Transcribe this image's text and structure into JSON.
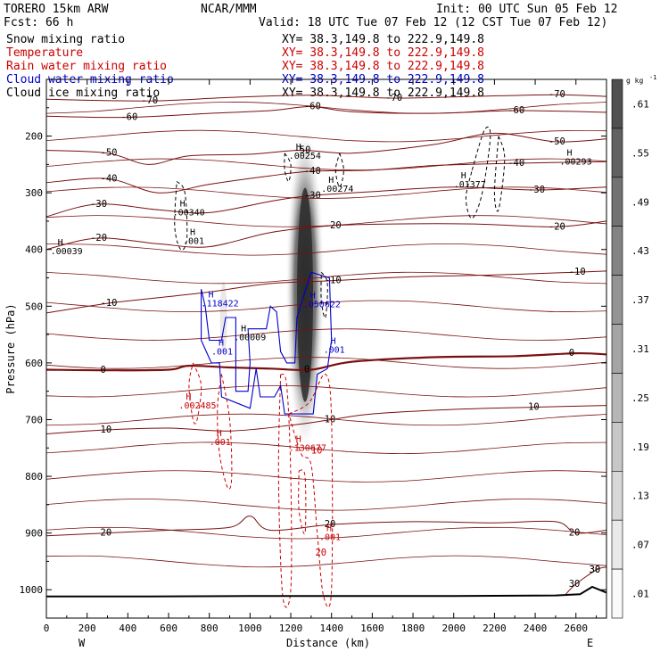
{
  "header": {
    "model": "TORERO  15km ARW",
    "org": "NCAR/MMM",
    "init": "Init: 00 UTC Sun 05 Feb 12",
    "fcst": "Fcst:   66 h",
    "valid": "Valid: 18 UTC Tue 07 Feb 12 (12 CST Tue 07 Feb 12)"
  },
  "fields": [
    {
      "name": "Snow mixing ratio",
      "xy": "XY=  38.3,149.8 to 222.9,149.8",
      "color": "#000000"
    },
    {
      "name": "Temperature",
      "xy": "XY=  38.3,149.8 to 222.9,149.8",
      "color": "#cc0000"
    },
    {
      "name": "Rain water mixing ratio",
      "xy": "XY=  38.3,149.8 to 222.9,149.8",
      "color": "#cc0000"
    },
    {
      "name": "Cloud water mixing ratio",
      "xy": "XY=  38.3,149.8 to 222.9,149.8",
      "color": "#0000cc"
    },
    {
      "name": "Cloud ice mixing ratio",
      "xy": "XY=  38.3,149.8 to 222.9,149.8",
      "color": "#000000"
    }
  ],
  "chart_data": {
    "type": "cross-section contour",
    "xlabel": "Distance (km)",
    "ylabel": "Pressure (hPa)",
    "xlim": [
      0,
      2750
    ],
    "ylim": [
      1050,
      100
    ],
    "xticks": [
      "0",
      "200",
      "400",
      "600",
      "800",
      "1000",
      "1200",
      "1400",
      "1600",
      "1800",
      "2000",
      "2200",
      "2400",
      "2600"
    ],
    "yticks": [
      "200",
      "300",
      "400",
      "500",
      "600",
      "700",
      "800",
      "900",
      "1000"
    ],
    "x_endpoints": [
      "W",
      "E"
    ],
    "colorbar": {
      "unit": "g kg",
      "unit_exp": "-1",
      "labels": [
        ".61",
        ".55",
        ".49",
        ".43",
        ".37",
        ".31",
        ".25",
        ".19",
        ".13",
        ".07",
        ".01"
      ]
    },
    "temperature_contours": [
      {
        "label": "-70",
        "points": [
          [
            0,
            135
          ],
          [
            500,
            138
          ],
          [
            900,
            132
          ],
          [
            1300,
            128
          ],
          [
            1700,
            133
          ],
          [
            2100,
            130
          ],
          [
            2500,
            127
          ],
          [
            2750,
            130
          ]
        ]
      },
      {
        "label": "-60",
        "points": [
          [
            0,
            165
          ],
          [
            400,
            167
          ],
          [
            800,
            160
          ],
          [
            1100,
            155
          ],
          [
            1300,
            148
          ],
          [
            1500,
            157
          ],
          [
            1900,
            160
          ],
          [
            2300,
            155
          ],
          [
            2750,
            158
          ]
        ]
      },
      {
        "label": "-50",
        "points": [
          [
            0,
            225
          ],
          [
            300,
            230
          ],
          [
            500,
            250
          ],
          [
            700,
            235
          ],
          [
            1000,
            232
          ],
          [
            1250,
            225
          ],
          [
            1500,
            230
          ],
          [
            1900,
            215
          ],
          [
            2200,
            195
          ],
          [
            2500,
            210
          ],
          [
            2750,
            205
          ]
        ]
      },
      {
        "label": "-40",
        "points": [
          [
            0,
            282
          ],
          [
            300,
            275
          ],
          [
            550,
            300
          ],
          [
            800,
            285
          ],
          [
            1100,
            270
          ],
          [
            1300,
            262
          ],
          [
            1600,
            260
          ],
          [
            1900,
            252
          ],
          [
            2300,
            248
          ],
          [
            2750,
            245
          ]
        ]
      },
      {
        "label": "-30",
        "points": [
          [
            0,
            342
          ],
          [
            250,
            320
          ],
          [
            550,
            330
          ],
          [
            800,
            335
          ],
          [
            1100,
            315
          ],
          [
            1300,
            305
          ],
          [
            1600,
            298
          ],
          [
            2000,
            290
          ],
          [
            2400,
            295
          ],
          [
            2750,
            290
          ]
        ]
      },
      {
        "label": "-20",
        "points": [
          [
            0,
            400
          ],
          [
            250,
            380
          ],
          [
            550,
            390
          ],
          [
            800,
            395
          ],
          [
            1100,
            370
          ],
          [
            1400,
            358
          ],
          [
            1700,
            355
          ],
          [
            2100,
            355
          ],
          [
            2500,
            360
          ],
          [
            2750,
            350
          ]
        ]
      },
      {
        "label": "-10",
        "points": [
          [
            0,
            512
          ],
          [
            300,
            495
          ],
          [
            550,
            485
          ],
          [
            800,
            475
          ],
          [
            1100,
            460
          ],
          [
            1400,
            455
          ],
          [
            1800,
            448
          ],
          [
            2200,
            445
          ],
          [
            2600,
            440
          ],
          [
            2750,
            438
          ]
        ]
      },
      {
        "label": "0",
        "points": [
          [
            0,
            612
          ],
          [
            300,
            613
          ],
          [
            600,
            612
          ],
          [
            700,
            605
          ],
          [
            900,
            608
          ],
          [
            1100,
            610
          ],
          [
            1300,
            612
          ],
          [
            1500,
            598
          ],
          [
            1900,
            590
          ],
          [
            2300,
            588
          ],
          [
            2600,
            583
          ],
          [
            2750,
            585
          ]
        ]
      },
      {
        "label": "10",
        "points": [
          [
            0,
            725
          ],
          [
            300,
            718
          ],
          [
            600,
            715
          ],
          [
            900,
            720
          ],
          [
            1200,
            710
          ],
          [
            1400,
            700
          ],
          [
            1600,
            690
          ],
          [
            2000,
            682
          ],
          [
            2400,
            678
          ],
          [
            2750,
            675
          ]
        ]
      },
      {
        "label": "20",
        "points": [
          [
            0,
            905
          ],
          [
            300,
            900
          ],
          [
            600,
            895
          ],
          [
            900,
            890
          ],
          [
            1000,
            870
          ],
          [
            1100,
            895
          ],
          [
            1400,
            885
          ],
          [
            1800,
            880
          ],
          [
            2200,
            882
          ],
          [
            2500,
            880
          ],
          [
            2600,
            900
          ],
          [
            2750,
            895
          ]
        ]
      },
      {
        "label": "30",
        "points": [
          [
            2550,
            1008
          ],
          [
            2600,
            990
          ],
          [
            2700,
            965
          ],
          [
            2750,
            960
          ]
        ]
      }
    ],
    "annotations": [
      {
        "text": ".00039",
        "x": 20,
        "p": 408,
        "group": "black"
      },
      {
        "text": ".00340",
        "x": 620,
        "p": 340,
        "group": "black"
      },
      {
        "text": ".001",
        "x": 670,
        "p": 390,
        "group": "black"
      },
      {
        "text": ".00254",
        "x": 1190,
        "p": 240,
        "group": "black"
      },
      {
        "text": ".00274",
        "x": 1350,
        "p": 298,
        "group": "black"
      },
      {
        "text": ".01377",
        "x": 2000,
        "p": 290,
        "group": "black"
      },
      {
        "text": ".00293",
        "x": 2520,
        "p": 250,
        "group": "black"
      },
      {
        "text": ".00009",
        "x": 920,
        "p": 560,
        "group": "black"
      },
      {
        "text": ".118422",
        "x": 760,
        "p": 500,
        "group": "blue"
      },
      {
        "text": ".050622",
        "x": 1260,
        "p": 502,
        "group": "blue"
      },
      {
        "text": ".001",
        "x": 810,
        "p": 585,
        "group": "blue"
      },
      {
        "text": ".001",
        "x": 1360,
        "p": 582,
        "group": "blue"
      },
      {
        "text": ".002485",
        "x": 650,
        "p": 680,
        "group": "red"
      },
      {
        "text": ".001",
        "x": 800,
        "p": 745,
        "group": "red"
      },
      {
        "text": ".130677",
        "x": 1190,
        "p": 755,
        "group": "red"
      },
      {
        "text": ".001",
        "x": 1340,
        "p": 912,
        "group": "red"
      }
    ],
    "rain_label_values": [
      "10",
      "20"
    ]
  }
}
